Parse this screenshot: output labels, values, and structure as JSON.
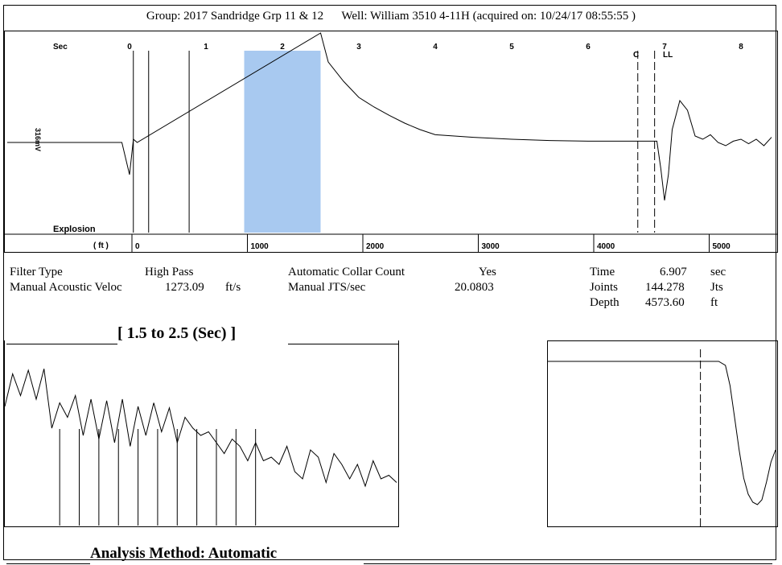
{
  "header": {
    "group_label": "Group: 2017 Sandridge Grp 11 & 12",
    "well_label": "Well: William 3510 4-11H (acquired on: 10/24/17 08:55:55 )"
  },
  "chart_data": [
    {
      "type": "line",
      "name": "acoustic trace",
      "x_unit": "Sec",
      "xlim": [
        -1.6,
        8.5
      ],
      "sec_ticks": [
        "0",
        "1",
        "2",
        "3",
        "4",
        "5",
        "6",
        "7",
        "8"
      ],
      "sec_axis_label": "Sec",
      "ft_axis_label": "( ft )",
      "ft_ticks": [
        "0",
        "1000",
        "2000",
        "3000",
        "4000",
        "5000"
      ],
      "y_axis_label": "316mV",
      "explosion_label": "Explosion",
      "highlight_window": [
        1.5,
        2.5
      ],
      "highlight_color": "#a8c9f0",
      "markers": {
        "C": "C",
        "LL": "LL"
      },
      "trace": {
        "x": [
          -1.6,
          -0.1,
          0,
          0.05,
          0.1,
          2.5,
          2.6,
          2.8,
          3.0,
          3.2,
          3.4,
          3.6,
          3.8,
          4.0,
          4.5,
          5.0,
          5.5,
          6.0,
          6.5,
          6.9,
          6.95,
          7.0,
          7.05,
          7.1,
          7.2,
          7.3,
          7.4,
          7.5,
          7.6,
          7.7,
          7.8,
          7.9,
          8.0,
          8.1,
          8.2,
          8.3,
          8.4
        ],
        "y": [
          0,
          0,
          -0.5,
          0.05,
          0,
          1.7,
          1.25,
          0.95,
          0.7,
          0.55,
          0.42,
          0.3,
          0.2,
          0.12,
          0.08,
          0.05,
          0.03,
          0.02,
          0.02,
          0.02,
          -0.4,
          -0.9,
          -0.5,
          0.2,
          0.65,
          0.5,
          0.1,
          0.05,
          0.12,
          0.0,
          -0.05,
          0.02,
          0.05,
          -0.02,
          0.05,
          -0.05,
          0.08
        ]
      }
    },
    {
      "type": "line",
      "name": "window detail",
      "title": "[ 1.5  to  2.5 (Sec) ]",
      "x": [
        0,
        2,
        4,
        6,
        8,
        10,
        12,
        14,
        16,
        18,
        20,
        22,
        24,
        26,
        28,
        30,
        32,
        34,
        36,
        38,
        40,
        42,
        44,
        46,
        48,
        50,
        52,
        54,
        56,
        58,
        60,
        62,
        64,
        66,
        68,
        70,
        72,
        74,
        76,
        78,
        80,
        82,
        84,
        86,
        88,
        90,
        92,
        94,
        96,
        98,
        100
      ],
      "y": [
        0.2,
        0.65,
        0.35,
        0.7,
        0.3,
        0.72,
        -0.1,
        0.25,
        0.05,
        0.35,
        -0.2,
        0.3,
        -0.25,
        0.28,
        -0.3,
        0.3,
        -0.35,
        0.2,
        -0.2,
        0.25,
        -0.15,
        0.18,
        -0.3,
        0.05,
        -0.1,
        -0.2,
        -0.15,
        -0.3,
        -0.45,
        -0.25,
        -0.35,
        -0.55,
        -0.3,
        -0.55,
        -0.5,
        -0.6,
        -0.35,
        -0.7,
        -0.8,
        -0.4,
        -0.5,
        -0.85,
        -0.45,
        -0.6,
        -0.8,
        -0.6,
        -0.9,
        -0.55,
        -0.8,
        -0.75,
        -0.85
      ],
      "joint_markers": [
        14,
        19,
        24,
        29,
        34,
        39,
        44,
        49,
        54,
        59,
        64
      ]
    },
    {
      "type": "line",
      "name": "collar detail",
      "x": [
        0,
        20,
        40,
        60,
        70,
        75,
        78,
        80,
        82,
        84,
        86,
        88,
        90,
        92,
        94,
        96,
        98,
        100
      ],
      "y": [
        0.9,
        0.9,
        0.9,
        0.9,
        0.9,
        0.9,
        0.85,
        0.6,
        0.2,
        -0.2,
        -0.55,
        -0.75,
        -0.85,
        -0.88,
        -0.82,
        -0.6,
        -0.35,
        -0.2
      ],
      "marker_at": 67
    }
  ],
  "params": {
    "filter_type_label": "Filter Type",
    "filter_type_value": "High Pass",
    "manual_velocity_label": "Manual Acoustic Veloc",
    "manual_velocity_value": "1273.09",
    "manual_velocity_unit": "ft/s",
    "auto_collar_label": "Automatic Collar Count",
    "auto_collar_value": "Yes",
    "manual_jts_label": "Manual JTS/sec",
    "manual_jts_value": "20.0803",
    "time_label": "Time",
    "time_value": "6.907",
    "time_unit": "sec",
    "joints_label": "Joints",
    "joints_value": "144.278",
    "joints_unit": "Jts",
    "depth_label": "Depth",
    "depth_value": "4573.60",
    "depth_unit": "ft"
  },
  "footer": {
    "analysis_method": "Analysis Method:   Automatic"
  }
}
